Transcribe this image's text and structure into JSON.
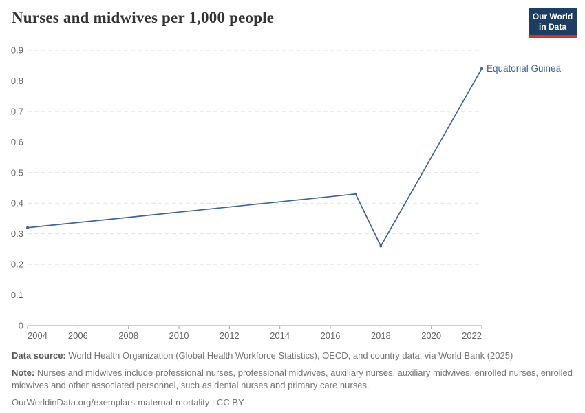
{
  "header": {
    "title": "Nurses and midwives per 1,000 people",
    "logo": {
      "line1": "Our World",
      "line2": "in Data"
    }
  },
  "colors": {
    "line": "#3d649c",
    "logo-bg": "#1d3d63",
    "logo-bar": "#d0342c",
    "grid": "#e2e2e2",
    "axis-text": "#666666",
    "axis-line": "#a3a3a3",
    "title-text": "#333333",
    "footer-text": "#757575",
    "footer-bold": "#5a5a5a"
  },
  "chart_data": {
    "type": "line",
    "title": "Nurses and midwives per 1,000 people",
    "entity": "Equatorial Guinea",
    "x": [
      2004,
      2017,
      2018,
      2022
    ],
    "series": [
      {
        "name": "Equatorial Guinea",
        "values": [
          0.32,
          0.43,
          0.26,
          0.84
        ]
      }
    ],
    "xlim": [
      2004,
      2022
    ],
    "ylim": [
      0,
      0.9
    ],
    "yticks": [
      "0",
      "0.1",
      "0.2",
      "0.3",
      "0.4",
      "0.5",
      "0.6",
      "0.7",
      "0.8",
      "0.9"
    ],
    "xticks": [
      "2004",
      "2006",
      "2008",
      "2010",
      "2012",
      "2014",
      "2016",
      "2018",
      "2020",
      "2022"
    ],
    "grid": "horizontal-dashed",
    "legend_position": "end-of-line-label"
  },
  "footer": {
    "source_label": "Data source:",
    "source_text": " World Health Organization (Global Health Workforce Statistics), OECD, and country data, via World Bank (2025)",
    "note_label": "Note:",
    "note_text": " Nurses and midwives include professional nurses, professional midwives, auxiliary nurses, auxiliary midwives, enrolled nurses, enrolled midwives and other associated personnel, such as dental nurses and primary care nurses.",
    "license": "OurWorldinData.org/exemplars-maternal-mortality | CC BY"
  }
}
